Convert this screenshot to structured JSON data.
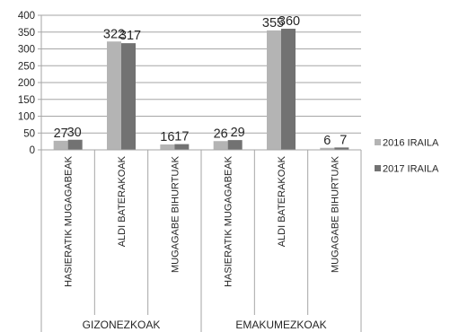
{
  "chart_data": {
    "type": "bar",
    "title": "",
    "xlabel": "",
    "ylabel": "",
    "ylim": [
      0,
      400
    ],
    "yticks": [
      0,
      50,
      100,
      150,
      200,
      250,
      300,
      350,
      400
    ],
    "grid": true,
    "legend_position": "right",
    "groups": [
      {
        "label": "GIZONEZKOAK",
        "span": 3
      },
      {
        "label": "EMAKUMEZKOAK",
        "span": 3
      }
    ],
    "categories": [
      "HASIERATIK MUGAGABEAK",
      "ALDI BATERAKOAK",
      "MUGAGABE BIHURTUAK",
      "HASIERATIK MUGAGABEAK",
      "ALDI BATERAKOAK",
      "MUGAGABE BIHURTUAK"
    ],
    "series": [
      {
        "name": "2016 IRAILA",
        "color": "#b4b4b4",
        "values": [
          27,
          322,
          16,
          26,
          355,
          6
        ]
      },
      {
        "name": "2017 IRAILA",
        "color": "#727272",
        "values": [
          30,
          317,
          17,
          29,
          360,
          7
        ]
      }
    ]
  }
}
